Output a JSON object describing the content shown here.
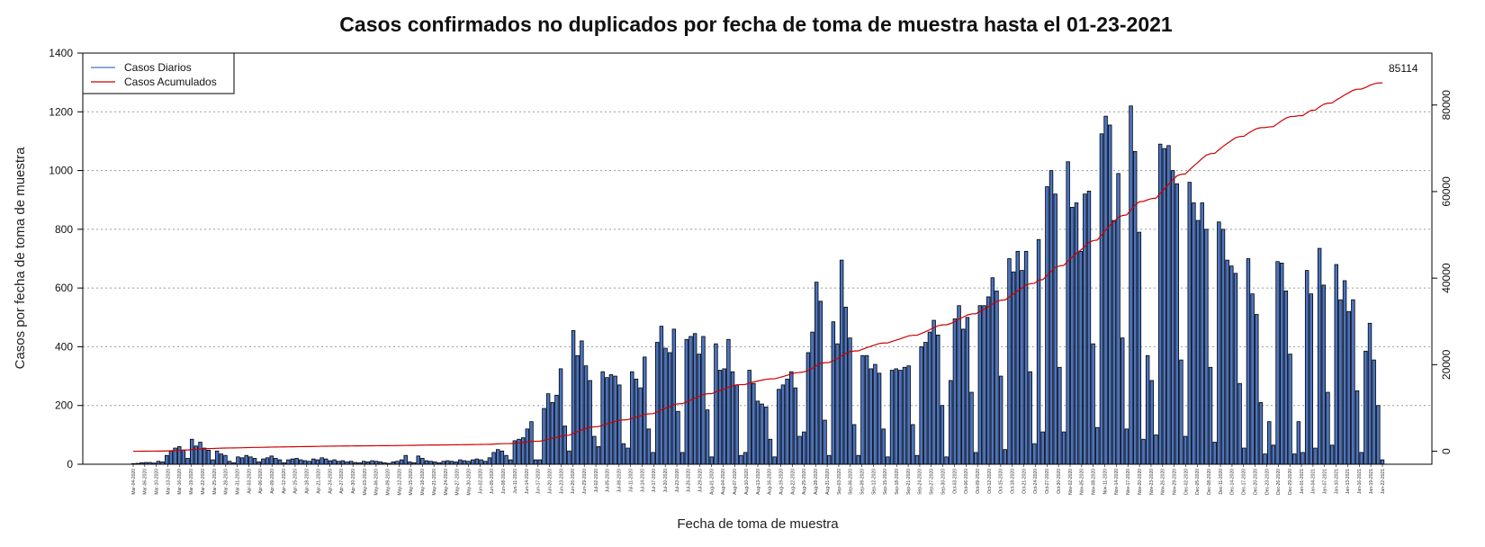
{
  "chart_data": {
    "type": "bar",
    "title": "Casos confirmados no duplicados por fecha de toma de muestra hasta el 01-23-2021",
    "xlabel": "Fecha de toma de muestra",
    "ylabel": "Casos por fecha de toma de muestra",
    "ylim": [
      0,
      1400
    ],
    "y_ticks": [
      0,
      200,
      400,
      600,
      800,
      1000,
      1200,
      1400
    ],
    "y2lim": [
      -3000,
      92000
    ],
    "y2_ticks": [
      0,
      20000,
      40000,
      60000,
      80000
    ],
    "grid": "horizontal dotted",
    "legend_position": "top-left",
    "colors": {
      "bars": "#4a74c4",
      "bar_border": "#000000",
      "line_daily": "#4a74c4",
      "line_cumulative": "#cc0000",
      "grid": "#9a9a9a"
    },
    "series": [
      {
        "name": "Casos Diarios",
        "role": "bars",
        "date_start": "Mar-04-2020",
        "values": [
          2,
          3,
          5,
          6,
          6,
          4,
          10,
          8,
          30,
          45,
          55,
          60,
          48,
          20,
          85,
          62,
          75,
          55,
          48,
          15,
          45,
          35,
          30,
          10,
          5,
          25,
          22,
          30,
          25,
          20,
          8,
          18,
          22,
          28,
          20,
          15,
          5,
          15,
          18,
          20,
          15,
          12,
          10,
          18,
          15,
          22,
          18,
          12,
          15,
          10,
          12,
          8,
          10,
          6,
          5,
          10,
          8,
          12,
          10,
          8,
          5,
          3,
          8,
          10,
          15,
          30,
          8,
          5,
          28,
          20,
          12,
          10,
          8,
          5,
          10,
          12,
          10,
          8,
          15,
          12,
          10,
          15,
          18,
          15,
          10,
          22,
          40,
          50,
          45,
          30,
          15,
          80,
          85,
          90,
          120,
          145,
          15,
          15,
          190,
          240,
          210,
          235,
          325,
          130,
          45,
          455,
          370,
          420,
          335,
          285,
          95,
          60,
          315,
          295,
          305,
          300,
          270,
          70,
          55,
          315,
          290,
          260,
          365,
          120,
          40,
          415,
          470,
          395,
          380,
          460,
          180,
          40,
          425,
          435,
          445,
          375,
          435,
          185,
          25,
          410,
          320,
          325,
          425,
          315,
          270,
          30,
          40,
          320,
          275,
          215,
          205,
          195,
          85,
          25,
          255,
          270,
          290,
          315,
          260,
          95,
          110,
          380,
          450,
          620,
          555,
          150,
          30,
          485,
          410,
          695,
          535,
          430,
          135,
          30,
          370,
          370,
          325,
          340,
          310,
          120,
          25,
          320,
          325,
          320,
          330,
          335,
          135,
          30,
          400,
          415,
          450,
          490,
          440,
          200,
          25,
          285,
          495,
          540,
          460,
          500,
          245,
          40,
          540,
          540,
          570,
          635,
          590,
          300,
          50,
          700,
          655,
          725,
          660,
          725,
          315,
          70,
          765,
          110,
          945,
          1000,
          920,
          330,
          110,
          1030,
          875,
          890,
          725,
          920,
          930,
          410,
          125,
          1125,
          1185,
          1155,
          830,
          990,
          430,
          120,
          1220,
          1065,
          790,
          85,
          370,
          285,
          100,
          1090,
          1075,
          1085,
          1000,
          955,
          355,
          95,
          960,
          890,
          830,
          890,
          800,
          330,
          75,
          825,
          800,
          695,
          675,
          650,
          275,
          55,
          700,
          580,
          510,
          210,
          35,
          145,
          65,
          690,
          685,
          590,
          375,
          35,
          145,
          40,
          660,
          580,
          55,
          735,
          610,
          245,
          65,
          680,
          560,
          625,
          520,
          560,
          250,
          40,
          385,
          480,
          355,
          200,
          15
        ]
      },
      {
        "name": "Casos Acumulados",
        "role": "line",
        "axis": "right",
        "final_value": 85114
      }
    ],
    "end_label": "85114",
    "x_tick_labels": [
      "Mar-04-2020",
      "Mar-06-2020",
      "Mar-10-2020",
      "Mar-13-2020",
      "Mar-16-2020",
      "Mar-19-2020",
      "Mar-22-2020",
      "Mar-25-2020",
      "Mar-28-2020",
      "Mar-31-2020",
      "Apr-03-2020",
      "Apr-06-2020",
      "Apr-09-2020",
      "Apr-12-2020",
      "Apr-15-2020",
      "Apr-18-2020",
      "Apr-21-2020",
      "Apr-24-2020",
      "Apr-27-2020",
      "Apr-30-2020",
      "May-03-2020",
      "May-06-2020",
      "May-09-2020",
      "May-12-2020",
      "May-15-2020",
      "May-18-2020",
      "May-21-2020",
      "May-24-2020",
      "May-27-2020",
      "May-30-2020",
      "Jun-02-2020",
      "Jun-05-2020",
      "Jun-08-2020",
      "Jun-11-2020",
      "Jun-14-2020",
      "Jun-17-2020",
      "Jun-20-2020",
      "Jun-23-2020",
      "Jun-26-2020",
      "Jun-29-2020",
      "Jul-02-2020",
      "Jul-05-2020",
      "Jul-08-2020",
      "Jul-11-2020",
      "Jul-14-2020",
      "Jul-17-2020",
      "Jul-20-2020",
      "Jul-23-2020",
      "Jul-26-2020",
      "Jul-29-2020",
      "Aug-01-2020",
      "Aug-04-2020",
      "Aug-07-2020",
      "Aug-10-2020",
      "Aug-13-2020",
      "Aug-16-2020",
      "Aug-19-2020",
      "Aug-22-2020",
      "Aug-25-2020",
      "Aug-28-2020",
      "Aug-31-2020",
      "Sep-03-2020",
      "Sep-06-2020",
      "Sep-09-2020",
      "Sep-12-2020",
      "Sep-15-2020",
      "Sep-18-2020",
      "Sep-21-2020",
      "Sep-24-2020",
      "Sep-27-2020",
      "Sep-30-2020",
      "Oct-03-2020",
      "Oct-06-2020",
      "Oct-09-2020",
      "Oct-12-2020",
      "Oct-15-2020",
      "Oct-18-2020",
      "Oct-21-2020",
      "Oct-24-2020",
      "Oct-27-2020",
      "Oct-30-2020",
      "Nov-02-2020",
      "Nov-05-2020",
      "Nov-08-2020",
      "Nov-11-2020",
      "Nov-14-2020",
      "Nov-17-2020",
      "Nov-20-2020",
      "Nov-23-2020",
      "Nov-26-2020",
      "Nov-29-2020",
      "Dec-02-2020",
      "Dec-05-2020",
      "Dec-08-2020",
      "Dec-11-2020",
      "Dec-14-2020",
      "Dec-17-2020",
      "Dec-20-2020",
      "Dec-23-2020",
      "Dec-26-2020",
      "Dec-29-2020",
      "Jan-01-2021",
      "Jan-04-2021",
      "Jan-07-2021",
      "Jan-10-2021",
      "Jan-13-2021",
      "Jan-16-2021",
      "Jan-19-2021",
      "Jan-22-2021"
    ]
  }
}
